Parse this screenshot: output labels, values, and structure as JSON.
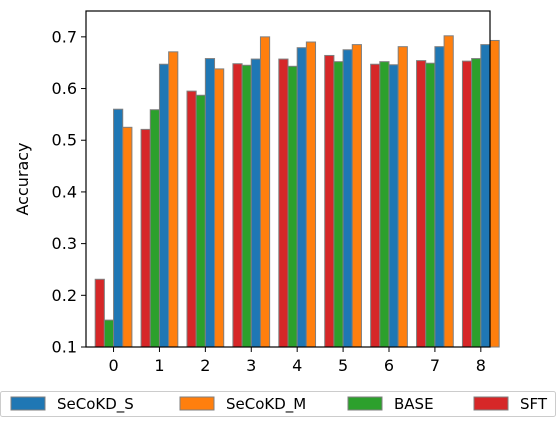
{
  "chart_data": {
    "type": "bar",
    "categories": [
      "0",
      "1",
      "2",
      "3",
      "4",
      "5",
      "6",
      "7",
      "8"
    ],
    "series": [
      {
        "name": "SFT",
        "color": "#d62728",
        "values": [
          0.231,
          0.521,
          0.595,
          0.648,
          0.657,
          0.664,
          0.647,
          0.654,
          0.653
        ]
      },
      {
        "name": "BASE",
        "color": "#2ca02c",
        "values": [
          0.152,
          0.559,
          0.587,
          0.645,
          0.643,
          0.652,
          0.652,
          0.649,
          0.658
        ]
      },
      {
        "name": "SeCoKD_S",
        "color": "#1f77b4",
        "values": [
          0.56,
          0.647,
          0.658,
          0.657,
          0.679,
          0.675,
          0.646,
          0.681,
          0.685
        ]
      },
      {
        "name": "SeCoKD_M",
        "color": "#ff7f0e",
        "values": [
          0.525,
          0.671,
          0.638,
          0.7,
          0.69,
          0.685,
          0.681,
          0.702,
          0.693
        ]
      }
    ],
    "legend_order": [
      "SeCoKD_S",
      "SeCoKD_M",
      "BASE",
      "SFT"
    ],
    "ylabel": "Accuracy",
    "xlabel": "",
    "title": "",
    "ylim": [
      0.1,
      0.75
    ],
    "yticks": [
      "0.1",
      "0.2",
      "0.3",
      "0.4",
      "0.5",
      "0.6",
      "0.7"
    ],
    "bar_edge_color": "#7f7f7f",
    "grid": false,
    "legend_position": "bottom"
  }
}
